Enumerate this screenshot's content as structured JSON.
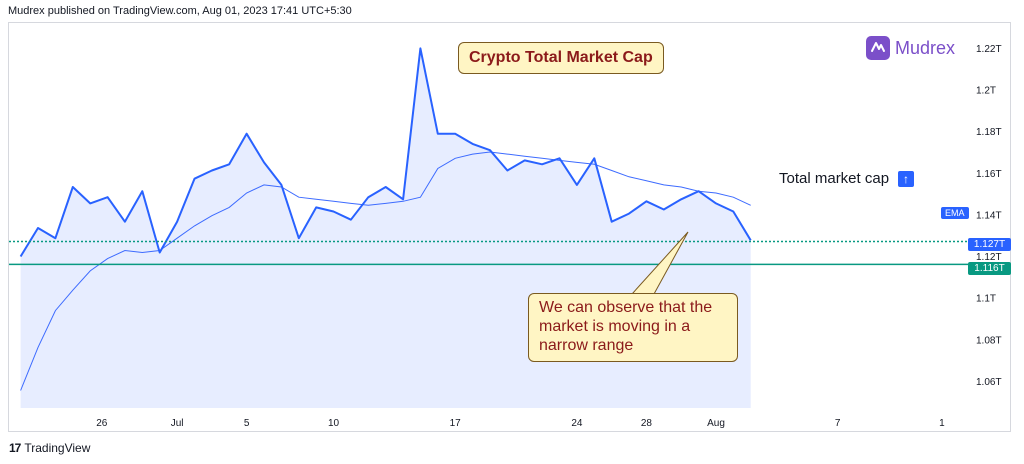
{
  "header": {
    "publish_line": "Mudrex published on TradingView.com, Aug 01, 2023 17:41 UTC+5:30"
  },
  "title_annotation": "Crypto Total Market Cap",
  "brand": {
    "name": "Mudrex",
    "accent": "#7b4fc9"
  },
  "legend": {
    "label": "Total market cap",
    "icon": "arrow-up-icon"
  },
  "ema_tag": "EMA",
  "price_tags": [
    {
      "label": "1.127T",
      "color": "#2962ff"
    },
    {
      "label": "1.116T",
      "color": "#089981"
    }
  ],
  "note_annotation": "We can observe that the market is moving in a narrow range",
  "footer": {
    "brand": "TradingView",
    "mark": "17"
  },
  "chart_data": {
    "type": "area",
    "y_unit": "T",
    "ylim": [
      1.047,
      1.232
    ],
    "y_ticks": [
      "1.22T",
      "1.2T",
      "1.18T",
      "1.16T",
      "1.14T",
      "1.12T",
      "1.1T",
      "1.08T",
      "1.06T"
    ],
    "y_tick_values": [
      1.22,
      1.2,
      1.18,
      1.16,
      1.14,
      1.12,
      1.1,
      1.08,
      1.06
    ],
    "x_ticks": [
      "26",
      "Jul",
      "5",
      "10",
      "17",
      "24",
      "28",
      "Aug",
      "7",
      "1"
    ],
    "x_tick_positions": [
      4.67,
      9,
      13,
      18,
      25,
      32,
      36,
      40,
      47,
      53
    ],
    "x_range": [
      -0.67,
      54.5
    ],
    "colors": {
      "price_line": "#2962ff",
      "area_fill": "#e3eaff",
      "ema_line": "#3d6bff",
      "support_line": "#089981"
    },
    "series": [
      {
        "values": [
          1.1198,
          1.1335,
          1.1286,
          1.1532,
          1.1453,
          1.1483,
          1.1365,
          1.1512,
          1.1217,
          1.1365,
          1.1572,
          1.1611,
          1.1641,
          1.1788,
          1.165,
          1.1542,
          1.1286,
          1.1434,
          1.1414,
          1.1375,
          1.1483,
          1.1532,
          1.1473,
          1.2198,
          1.1788,
          1.1788,
          1.1739,
          1.1709,
          1.1611,
          1.166,
          1.1641,
          1.167,
          1.1542,
          1.167,
          1.1365,
          1.1404,
          1.1463,
          1.1424,
          1.1473,
          1.1512,
          1.1453,
          1.1414,
          1.1276
        ]
      },
      {
        "name": "EMA",
        "values": [
          1.0554,
          1.0761,
          1.0938,
          1.1036,
          1.1129,
          1.1188,
          1.1227,
          1.1217,
          1.1227,
          1.1286,
          1.1345,
          1.1394,
          1.1434,
          1.1503,
          1.1542,
          1.1532,
          1.1483,
          1.1473,
          1.1463,
          1.1453,
          1.1444,
          1.1453,
          1.1463,
          1.1483,
          1.1621,
          1.167,
          1.169,
          1.17,
          1.169,
          1.168,
          1.167,
          1.166,
          1.165,
          1.1641,
          1.1611,
          1.1581,
          1.1562,
          1.1542,
          1.1532,
          1.1512,
          1.1503,
          1.1483,
          1.1444
        ]
      }
    ],
    "annotations": {
      "horizontal_lines": [
        {
          "value": 1.127,
          "label": "1.127T"
        },
        {
          "value": 1.116,
          "label": "1.116T"
        }
      ]
    }
  }
}
